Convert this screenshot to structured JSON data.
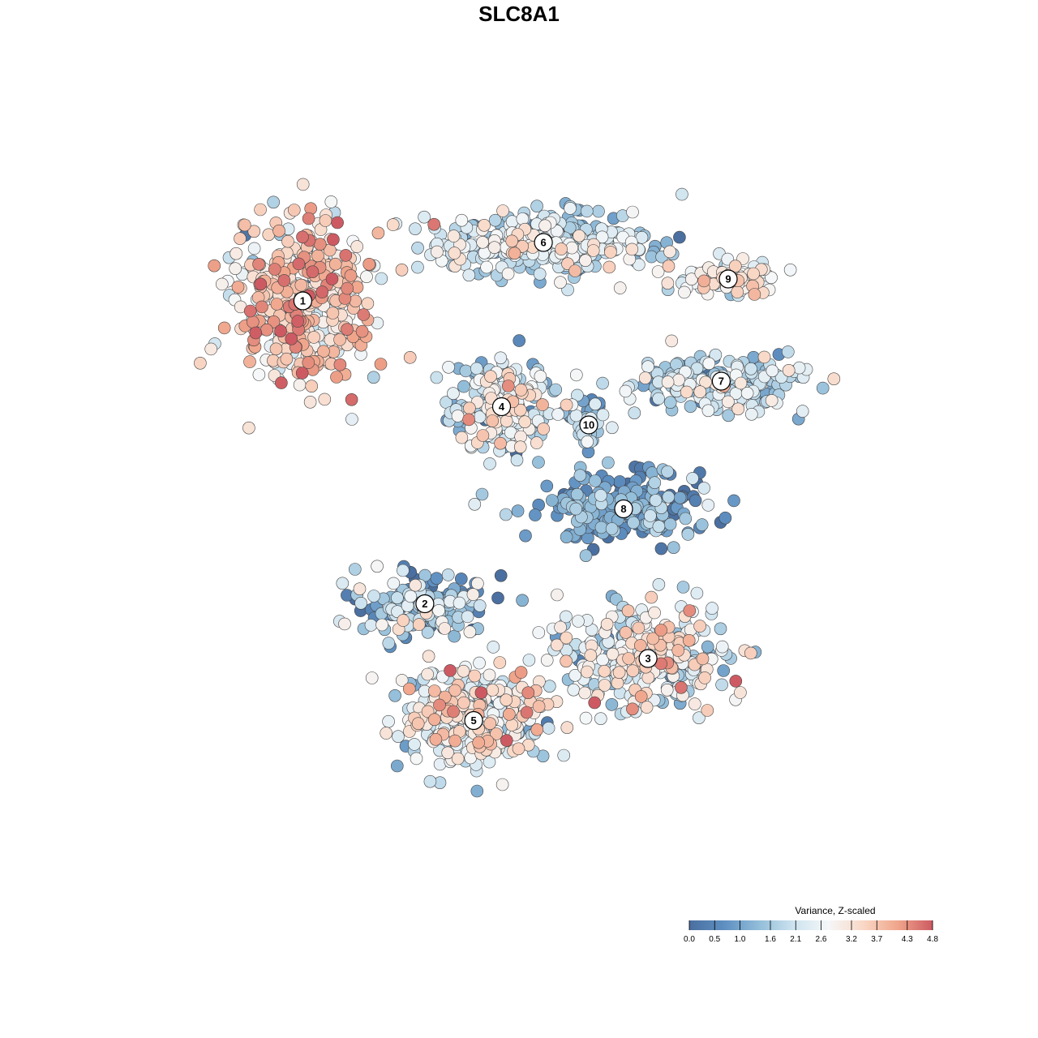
{
  "chart_data": {
    "type": "scatter",
    "title": "SLC8A1",
    "xlabel": "",
    "ylabel": "",
    "grid": false,
    "legend": {
      "title": "Variance, Z-scaled",
      "placement": "bottom-right",
      "range": [
        0.0,
        4.8
      ],
      "ticks": [
        "0.0",
        "0.5",
        "1.0",
        "1.6",
        "2.1",
        "2.6",
        "3.2",
        "3.7",
        "4.3",
        "4.8"
      ],
      "colors": [
        "#4a6fa0",
        "#5e8fc1",
        "#92bdd9",
        "#cde3ef",
        "#f5f7f8",
        "#f9d8c6",
        "#f0a58b",
        "#cd5a62"
      ]
    },
    "clusters": [
      {
        "label": "1",
        "x": -0.62,
        "y": 0.62,
        "mean": 3.3,
        "sd": 0.75
      },
      {
        "label": "2",
        "x": -0.27,
        "y": -0.21,
        "mean": 1.3,
        "sd": 0.9
      },
      {
        "label": "3",
        "x": 0.37,
        "y": -0.36,
        "mean": 2.5,
        "sd": 0.8
      },
      {
        "label": "4",
        "x": -0.05,
        "y": 0.33,
        "mean": 2.2,
        "sd": 0.9
      },
      {
        "label": "5",
        "x": -0.13,
        "y": -0.53,
        "mean": 2.6,
        "sd": 0.8
      },
      {
        "label": "6",
        "x": 0.07,
        "y": 0.78,
        "mean": 2.0,
        "sd": 0.7
      },
      {
        "label": "7",
        "x": 0.58,
        "y": 0.4,
        "mean": 1.9,
        "sd": 0.7
      },
      {
        "label": "8",
        "x": 0.3,
        "y": 0.05,
        "mean": 0.8,
        "sd": 0.6
      },
      {
        "label": "9",
        "x": 0.6,
        "y": 0.68,
        "mean": 2.8,
        "sd": 0.6
      },
      {
        "label": "10",
        "x": 0.2,
        "y": 0.28,
        "mean": 1.5,
        "sd": 0.6
      }
    ]
  }
}
